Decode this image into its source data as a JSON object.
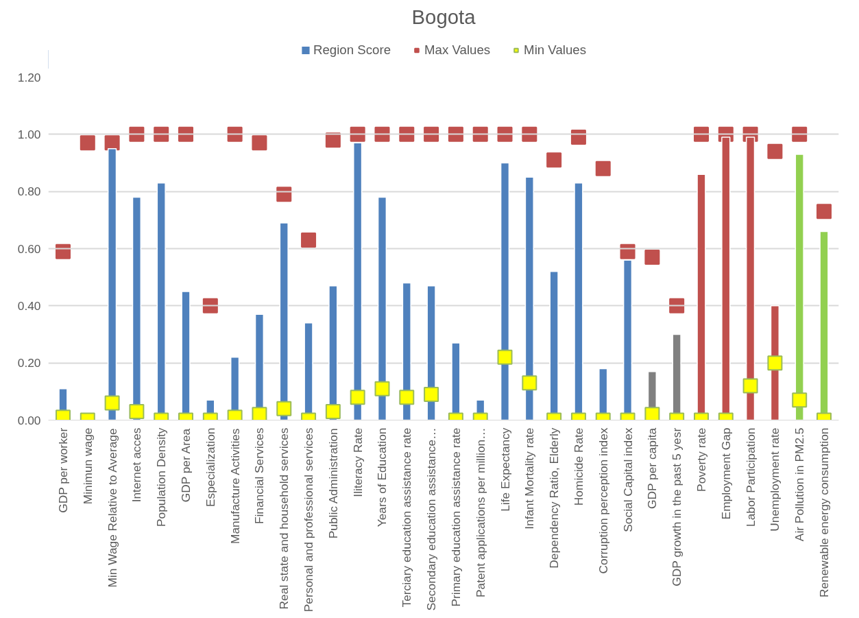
{
  "chart_data": {
    "type": "bar",
    "title": "Bogota",
    "categories": [
      "GDP per worker",
      "Minimun wage",
      "Min Wage Relative to Average",
      "Internet acces",
      "Population Density",
      "GDP per Area",
      "Especialization",
      "Manufacture Activities",
      "Financial Services",
      "Real state and household services",
      "Personal and professional services",
      "Public Administration",
      "Iliteracy Rate",
      "Years of Education",
      "Terciary education assistance rate",
      "Secondary education assistance…",
      "Primary education assistance rate",
      "Patent applications per million…",
      "Life Expectancy",
      "Infant Mortality rate",
      "Dependency Ratio, Elderly",
      "Homicide Rate",
      "Corruption perception index",
      "Social Capital index",
      "GDP per capita",
      "GDP growth in the past 5 yesr",
      "Poverty rate",
      "Employment Gap",
      "Labor Participation",
      "Unemployment rate",
      "Air Pollution in PM2.5",
      "Renewable energy consumption"
    ],
    "series": [
      {
        "name": "Region Score",
        "color": "#4f81bd",
        "colors": [
          "#4f81bd",
          "#4f81bd",
          "#4f81bd",
          "#4f81bd",
          "#4f81bd",
          "#4f81bd",
          "#4f81bd",
          "#4f81bd",
          "#4f81bd",
          "#4f81bd",
          "#4f81bd",
          "#4f81bd",
          "#4f81bd",
          "#4f81bd",
          "#4f81bd",
          "#4f81bd",
          "#4f81bd",
          "#4f81bd",
          "#4f81bd",
          "#4f81bd",
          "#4f81bd",
          "#4f81bd",
          "#4f81bd",
          "#4f81bd",
          "#808080",
          "#808080",
          "#c0504d",
          "#c0504d",
          "#c0504d",
          "#c0504d",
          "#92d050",
          "#92d050"
        ],
        "values": [
          0.11,
          null,
          0.95,
          0.78,
          0.83,
          0.45,
          0.07,
          0.22,
          0.37,
          0.69,
          0.34,
          0.47,
          0.97,
          0.78,
          0.48,
          0.47,
          0.27,
          0.07,
          0.9,
          0.85,
          0.52,
          0.83,
          0.18,
          0.56,
          0.17,
          0.3,
          0.86,
          0.99,
          0.99,
          0.4,
          0.93,
          0.66
        ]
      },
      {
        "name": "Max Values",
        "type": "scatter",
        "marker": "square",
        "color": "#c0504d",
        "values": [
          0.59,
          0.97,
          0.97,
          1.0,
          1.0,
          1.0,
          0.4,
          1.0,
          0.97,
          0.79,
          0.63,
          0.98,
          1.0,
          1.0,
          1.0,
          1.0,
          1.0,
          1.0,
          1.0,
          1.0,
          0.91,
          0.99,
          0.88,
          0.59,
          0.57,
          0.4,
          1.0,
          1.0,
          1.0,
          0.94,
          1.0,
          0.73
        ]
      },
      {
        "name": "Min Values",
        "type": "scatter",
        "marker": "square",
        "color": "#ffff00",
        "values": [
          0.01,
          0.0,
          0.06,
          0.03,
          0.0,
          0.0,
          0.0,
          0.01,
          0.02,
          0.04,
          0.0,
          0.03,
          0.08,
          0.11,
          0.08,
          0.09,
          0.0,
          0.0,
          0.22,
          0.13,
          0.0,
          0.0,
          0.0,
          0.0,
          0.02,
          0.0,
          0.0,
          0.0,
          0.12,
          0.2,
          0.07,
          0.0
        ]
      }
    ],
    "ylim": [
      0,
      1.2
    ],
    "yticks": [
      {
        "value": 0,
        "label": "0.00"
      },
      {
        "value": 0.2,
        "label": "0.20"
      },
      {
        "value": 0.4,
        "label": "0.40"
      },
      {
        "value": 0.6,
        "label": "0.60"
      },
      {
        "value": 0.8,
        "label": "0.80"
      },
      {
        "value": 1.0,
        "label": "1.00"
      },
      {
        "value": 1.2,
        "label": "1.20"
      }
    ],
    "grid": "y",
    "legend": "top"
  }
}
